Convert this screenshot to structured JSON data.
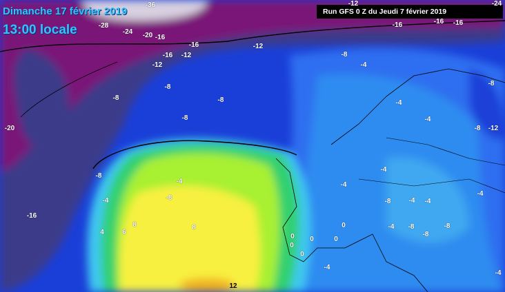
{
  "header": {
    "date": "Dimanche 17 février 2019",
    "time": "13:00 locale",
    "run": "Run GFS 0 Z du Jeudi 7 février 2019"
  },
  "colors": {
    "very_cold": "#e8e8ee",
    "purple": "#7a1478",
    "dark_blue": "#3a3a8a",
    "blue": "#1a3fd8",
    "light_blue": "#2e8cf0",
    "cyan": "#40c8f0",
    "green": "#30d070",
    "lime": "#a8f030",
    "yellow": "#f8f040",
    "orange": "#f0b020"
  },
  "labels": [
    "-36",
    "-28",
    "-24",
    "-20",
    "-16",
    "-16",
    "-16",
    "-12",
    "-12",
    "-12",
    "-8",
    "-8",
    "-8",
    "-8",
    "-20",
    "-12",
    "-24",
    "-16",
    "-16",
    "-16",
    "-8",
    "-4",
    "-8",
    "-4",
    "-4",
    "-8",
    "-12",
    "-8",
    "-4",
    "-8",
    "-4",
    "-16",
    "8",
    "8",
    "6",
    "4",
    "-4",
    "-4",
    "-8",
    "-4",
    "-4",
    "-4",
    "-8",
    "-8",
    "-8",
    "-4",
    "0",
    "0",
    "0",
    "0",
    "0",
    "0",
    "-4",
    "12",
    "-4"
  ]
}
